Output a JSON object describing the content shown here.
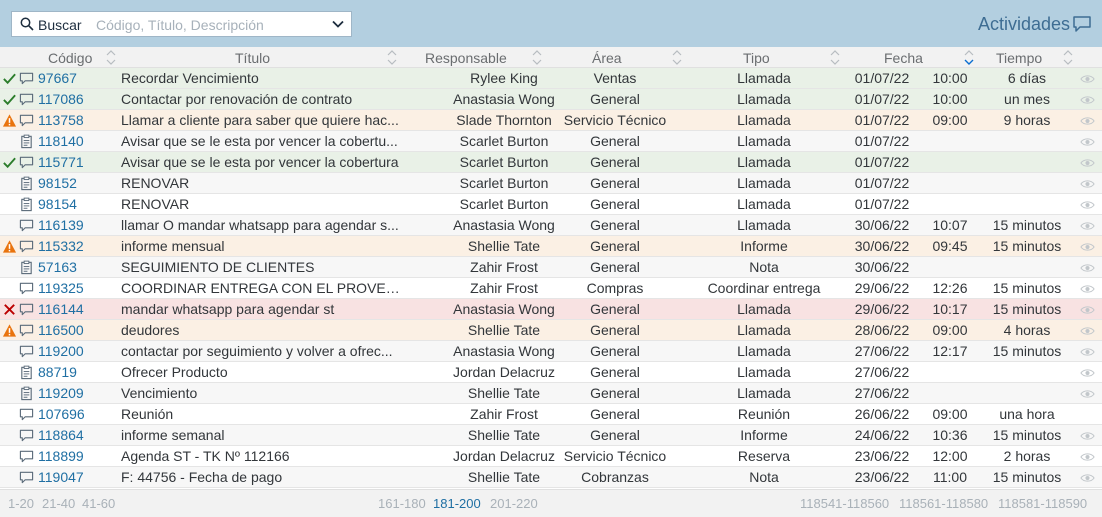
{
  "header": {
    "search_label": "Buscar",
    "search_placeholder": "Código, Título, Descripción",
    "title": "Actividades"
  },
  "columns": [
    "Código",
    "Título",
    "Responsable",
    "Área",
    "Tipo",
    "Fecha",
    "Tiempo"
  ],
  "rows": [
    {
      "status": "check",
      "type_icon": "chat",
      "code": "97667",
      "title": "Recordar Vencimiento",
      "resp": "Rylee King",
      "area": "Ventas",
      "tipo": "Llamada",
      "fecha": "01/07/22",
      "hora": "10:00",
      "tiempo": "6 días",
      "eye": true,
      "bg": "green"
    },
    {
      "status": "check",
      "type_icon": "chat",
      "code": "117086",
      "title": "Contactar por renovación de contrato",
      "resp": "Anastasia Wong",
      "area": "General",
      "tipo": "Llamada",
      "fecha": "01/07/22",
      "hora": "10:00",
      "tiempo": "un mes",
      "eye": true,
      "bg": "green"
    },
    {
      "status": "warning",
      "type_icon": "chat",
      "code": "113758",
      "title": "Llamar a cliente para saber que quiere hac...",
      "resp": "Slade Thornton",
      "area": "Servicio Técnico",
      "tipo": "Llamada",
      "fecha": "01/07/22",
      "hora": "09:00",
      "tiempo": "9 horas",
      "eye": true,
      "bg": "orange"
    },
    {
      "status": "",
      "type_icon": "clipboard",
      "code": "118140",
      "title": "Avisar que se le esta por vencer la cobertu...",
      "resp": "Scarlet Burton",
      "area": "General",
      "tipo": "Llamada",
      "fecha": "01/07/22",
      "hora": "",
      "tiempo": "",
      "eye": true,
      "bg": "grey"
    },
    {
      "status": "check",
      "type_icon": "chat",
      "code": "115771",
      "title": "Avisar que se le esta por vencer la cobertura",
      "resp": "Scarlet Burton",
      "area": "General",
      "tipo": "Llamada",
      "fecha": "01/07/22",
      "hora": "",
      "tiempo": "",
      "eye": true,
      "bg": "green"
    },
    {
      "status": "",
      "type_icon": "clipboard",
      "code": "98152",
      "title": "RENOVAR",
      "resp": "Scarlet Burton",
      "area": "General",
      "tipo": "Llamada",
      "fecha": "01/07/22",
      "hora": "",
      "tiempo": "",
      "eye": true,
      "bg": "grey"
    },
    {
      "status": "",
      "type_icon": "clipboard",
      "code": "98154",
      "title": "RENOVAR",
      "resp": "Scarlet Burton",
      "area": "General",
      "tipo": "Llamada",
      "fecha": "01/07/22",
      "hora": "",
      "tiempo": "",
      "eye": true,
      "bg": "plain"
    },
    {
      "status": "",
      "type_icon": "chat",
      "code": "116139",
      "title": "llamar O mandar whatsapp para agendar s...",
      "resp": "Anastasia Wong",
      "area": "General",
      "tipo": "Llamada",
      "fecha": "30/06/22",
      "hora": "10:07",
      "tiempo": "15 minutos",
      "eye": true,
      "bg": "grey"
    },
    {
      "status": "warning",
      "type_icon": "chat",
      "code": "115332",
      "title": "informe mensual",
      "resp": "Shellie Tate",
      "area": "General",
      "tipo": "Informe",
      "fecha": "30/06/22",
      "hora": "09:45",
      "tiempo": "15 minutos",
      "eye": true,
      "bg": "orange"
    },
    {
      "status": "",
      "type_icon": "clipboard",
      "code": "57163",
      "title": "SEGUIMIENTO DE CLIENTES",
      "resp": "Zahir Frost",
      "area": "General",
      "tipo": "Nota",
      "fecha": "30/06/22",
      "hora": "",
      "tiempo": "",
      "eye": true,
      "bg": "grey"
    },
    {
      "status": "",
      "type_icon": "chat",
      "code": "119325",
      "title": "COORDINAR ENTREGA CON EL PROVEE...",
      "resp": "Zahir Frost",
      "area": "Compras",
      "tipo": "Coordinar entrega",
      "fecha": "29/06/22",
      "hora": "12:26",
      "tiempo": "15 minutos",
      "eye": true,
      "bg": "plain"
    },
    {
      "status": "cross",
      "type_icon": "chat",
      "code": "116144",
      "title": "mandar whatsapp para agendar st",
      "resp": "Anastasia Wong",
      "area": "General",
      "tipo": "Llamada",
      "fecha": "29/06/22",
      "hora": "10:17",
      "tiempo": "15 minutos",
      "eye": true,
      "bg": "red"
    },
    {
      "status": "warning",
      "type_icon": "chat",
      "code": "116500",
      "title": "deudores",
      "resp": "Shellie Tate",
      "area": "General",
      "tipo": "Llamada",
      "fecha": "28/06/22",
      "hora": "09:00",
      "tiempo": "4 horas",
      "eye": true,
      "bg": "orange"
    },
    {
      "status": "",
      "type_icon": "chat",
      "code": "119200",
      "title": "contactar por seguimiento y volver a ofrec...",
      "resp": "Anastasia Wong",
      "area": "General",
      "tipo": "Llamada",
      "fecha": "27/06/22",
      "hora": "12:17",
      "tiempo": "15 minutos",
      "eye": true,
      "bg": "grey"
    },
    {
      "status": "",
      "type_icon": "clipboard",
      "code": "88719",
      "title": "Ofrecer Producto",
      "resp": "Jordan Delacruz",
      "area": "General",
      "tipo": "Llamada",
      "fecha": "27/06/22",
      "hora": "",
      "tiempo": "",
      "eye": true,
      "bg": "plain"
    },
    {
      "status": "",
      "type_icon": "clipboard",
      "code": "119209",
      "title": "Vencimiento",
      "resp": "Shellie Tate",
      "area": "General",
      "tipo": "Llamada",
      "fecha": "27/06/22",
      "hora": "",
      "tiempo": "",
      "eye": true,
      "bg": "grey"
    },
    {
      "status": "",
      "type_icon": "chat",
      "code": "107696",
      "title": "Reunión",
      "resp": "Zahir Frost",
      "area": "General",
      "tipo": "Reunión",
      "fecha": "26/06/22",
      "hora": "09:00",
      "tiempo": "una hora",
      "eye": false,
      "bg": "plain"
    },
    {
      "status": "",
      "type_icon": "chat",
      "code": "118864",
      "title": "informe semanal",
      "resp": "Shellie Tate",
      "area": "General",
      "tipo": "Informe",
      "fecha": "24/06/22",
      "hora": "10:36",
      "tiempo": "15 minutos",
      "eye": true,
      "bg": "grey"
    },
    {
      "status": "",
      "type_icon": "chat",
      "code": "118899",
      "title": "Agenda ST - TK Nº 112166",
      "resp": "Jordan Delacruz",
      "area": "Servicio Técnico",
      "tipo": "Reserva",
      "fecha": "23/06/22",
      "hora": "12:00",
      "tiempo": "2 horas",
      "eye": true,
      "bg": "plain"
    },
    {
      "status": "",
      "type_icon": "chat",
      "code": "119047",
      "title": "F: 44756 - Fecha de pago",
      "resp": "Shellie Tate",
      "area": "Cobranzas",
      "tipo": "Nota",
      "fecha": "23/06/22",
      "hora": "11:00",
      "tiempo": "15 minutos",
      "eye": true,
      "bg": "grey"
    }
  ],
  "pager": {
    "left": [
      "1-20",
      "21-40",
      "41-60"
    ],
    "middle": [
      "161-180",
      "181-200",
      "201-220"
    ],
    "middle_active": "181-200",
    "right": [
      "118541-118560",
      "118561-118580",
      "118581-118590"
    ]
  },
  "colors": {
    "topbar": "#b3cfe0",
    "link": "#1f6fa3",
    "check": "#2b7d2b",
    "warning": "#e9730c",
    "cross": "#bb0000"
  }
}
